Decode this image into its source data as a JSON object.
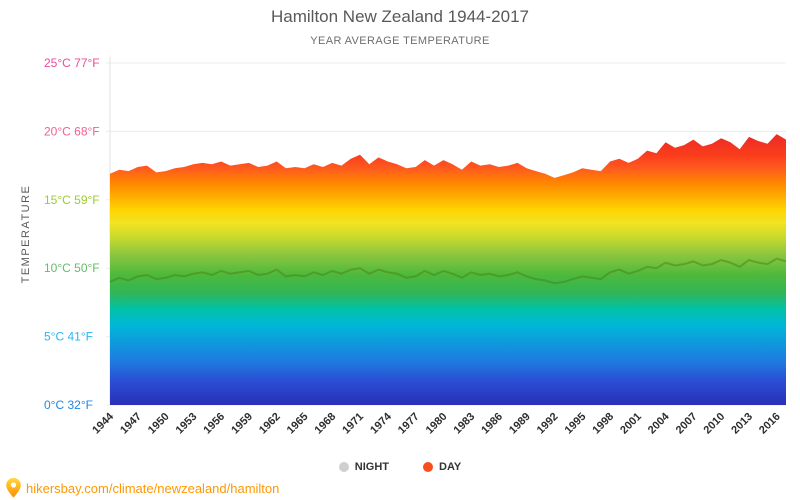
{
  "title": "Hamilton New Zealand 1944-2017",
  "subtitle": "YEAR AVERAGE TEMPERATURE",
  "y_axis_label": "TEMPERATURE",
  "legend": {
    "night": {
      "label": "NIGHT",
      "color": "#cfcfcf"
    },
    "day": {
      "label": "DAY",
      "color": "#f94d1c"
    }
  },
  "footer": {
    "url": "hikersbay.com/climate/newzealand/hamilton",
    "color": "#ff9800"
  },
  "y_ticks": [
    {
      "c": 25,
      "label": "25°C 77°F",
      "color": "#ec4b9b"
    },
    {
      "c": 20,
      "label": "20°C 68°F",
      "color": "#f06292"
    },
    {
      "c": 15,
      "label": "15°C 59°F",
      "color": "#9ccc2f"
    },
    {
      "c": 10,
      "label": "10°C 50°F",
      "color": "#66bb6a"
    },
    {
      "c": 5,
      "label": "5°C 41°F",
      "color": "#29b6f6"
    },
    {
      "c": 0,
      "label": "0°C 32°F",
      "color": "#1e88e5"
    }
  ],
  "chart_data": {
    "type": "area",
    "title": "Hamilton New Zealand 1944-2017",
    "subtitle": "YEAR AVERAGE TEMPERATURE",
    "ylabel": "TEMPERATURE",
    "ylim": [
      0,
      25
    ],
    "x": [
      1944,
      1945,
      1946,
      1947,
      1948,
      1949,
      1950,
      1951,
      1952,
      1953,
      1954,
      1955,
      1956,
      1957,
      1958,
      1959,
      1960,
      1961,
      1962,
      1963,
      1964,
      1965,
      1966,
      1967,
      1968,
      1969,
      1970,
      1971,
      1972,
      1973,
      1974,
      1975,
      1976,
      1977,
      1978,
      1979,
      1980,
      1981,
      1982,
      1983,
      1984,
      1985,
      1986,
      1987,
      1988,
      1989,
      1990,
      1991,
      1992,
      1993,
      1994,
      1995,
      1996,
      1997,
      1998,
      1999,
      2000,
      2001,
      2002,
      2003,
      2004,
      2005,
      2006,
      2007,
      2008,
      2009,
      2010,
      2011,
      2012,
      2013,
      2014,
      2015,
      2016,
      2017
    ],
    "x_ticks": [
      1944,
      1947,
      1950,
      1953,
      1956,
      1959,
      1962,
      1965,
      1968,
      1971,
      1974,
      1977,
      1980,
      1983,
      1986,
      1989,
      1992,
      1995,
      1998,
      2001,
      2004,
      2007,
      2010,
      2013,
      2016
    ],
    "series": [
      {
        "name": "DAY",
        "values": [
          16.9,
          17.2,
          17.1,
          17.4,
          17.5,
          17.0,
          17.1,
          17.3,
          17.4,
          17.6,
          17.7,
          17.6,
          17.8,
          17.5,
          17.6,
          17.7,
          17.4,
          17.5,
          17.8,
          17.3,
          17.4,
          17.3,
          17.6,
          17.4,
          17.7,
          17.5,
          18.0,
          18.3,
          17.6,
          18.1,
          17.8,
          17.6,
          17.3,
          17.4,
          17.9,
          17.5,
          17.9,
          17.6,
          17.2,
          17.8,
          17.5,
          17.6,
          17.4,
          17.5,
          17.7,
          17.3,
          17.1,
          16.9,
          16.6,
          16.8,
          17.0,
          17.3,
          17.2,
          17.1,
          17.8,
          18.0,
          17.7,
          18.0,
          18.6,
          18.4,
          19.2,
          18.8,
          19.0,
          19.4,
          18.9,
          19.1,
          19.5,
          19.2,
          18.7,
          19.6,
          19.3,
          19.1,
          19.8,
          19.4
        ]
      },
      {
        "name": "NIGHT",
        "values": [
          9.0,
          9.3,
          9.1,
          9.4,
          9.5,
          9.2,
          9.3,
          9.5,
          9.4,
          9.6,
          9.7,
          9.5,
          9.8,
          9.6,
          9.7,
          9.8,
          9.5,
          9.6,
          9.9,
          9.4,
          9.5,
          9.4,
          9.7,
          9.5,
          9.8,
          9.6,
          9.9,
          10.0,
          9.6,
          9.9,
          9.7,
          9.6,
          9.3,
          9.4,
          9.8,
          9.5,
          9.8,
          9.6,
          9.3,
          9.7,
          9.5,
          9.6,
          9.4,
          9.5,
          9.7,
          9.4,
          9.2,
          9.1,
          8.9,
          9.0,
          9.2,
          9.4,
          9.3,
          9.2,
          9.7,
          9.9,
          9.6,
          9.8,
          10.1,
          10.0,
          10.4,
          10.2,
          10.3,
          10.5,
          10.2,
          10.3,
          10.6,
          10.4,
          10.1,
          10.6,
          10.4,
          10.3,
          10.7,
          10.5
        ]
      }
    ],
    "gradient": [
      {
        "t": 0,
        "color": "#2a2fb8"
      },
      {
        "t": 1.8,
        "color": "#2a4fd4"
      },
      {
        "t": 3.2,
        "color": "#1e7ae0"
      },
      {
        "t": 4.6,
        "color": "#0d9bdc"
      },
      {
        "t": 5.8,
        "color": "#00b6d8"
      },
      {
        "t": 7.0,
        "color": "#00c2a8"
      },
      {
        "t": 8.2,
        "color": "#31b556"
      },
      {
        "t": 9.5,
        "color": "#4db93c"
      },
      {
        "t": 11.0,
        "color": "#8cc63f"
      },
      {
        "t": 12.2,
        "color": "#c5d92d"
      },
      {
        "t": 13.3,
        "color": "#f2e422"
      },
      {
        "t": 14.3,
        "color": "#ffd400"
      },
      {
        "t": 15.3,
        "color": "#ffaa00"
      },
      {
        "t": 16.3,
        "color": "#ff8400"
      },
      {
        "t": 17.3,
        "color": "#ff5a1f"
      },
      {
        "t": 18.3,
        "color": "#fa3c1c"
      },
      {
        "t": 19.5,
        "color": "#ee2e24"
      },
      {
        "t": 25,
        "color": "#ee2e24"
      }
    ]
  }
}
